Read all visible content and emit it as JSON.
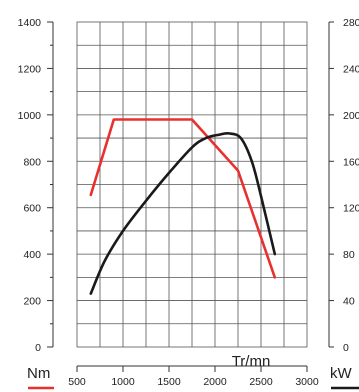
{
  "chart_data": {
    "type": "line",
    "xlabel": "Tr/mn",
    "x_ticks": [
      500,
      1000,
      1500,
      2000,
      2500,
      3000
    ],
    "xlim": [
      500,
      3000
    ],
    "y_left": {
      "unit": "Nm",
      "ticks": [
        0,
        200,
        400,
        600,
        800,
        1000,
        1200,
        1400
      ],
      "ylim": [
        0,
        1400
      ]
    },
    "y_right": {
      "unit": "kW",
      "ticks": [
        0,
        40,
        80,
        120,
        160,
        200,
        240,
        280
      ],
      "ylim": [
        0,
        280
      ]
    },
    "grid": true,
    "series": [
      {
        "color": "#e8312f",
        "axis": "left",
        "x": [
          650,
          900,
          1750,
          2250,
          2650
        ],
        "y": [
          655,
          980,
          980,
          760,
          300
        ]
      },
      {
        "color": "#1a1a1a",
        "axis": "right",
        "x": [
          650,
          800,
          1000,
          1250,
          1500,
          1750,
          1900,
          2050,
          2150,
          2280,
          2400,
          2500,
          2650
        ],
        "y": [
          46,
          74,
          100,
          126,
          150,
          172,
          180,
          183,
          184,
          180,
          160,
          130,
          80
        ]
      }
    ],
    "colors": {
      "nm_underline": "#e8312f",
      "kw_underline": "#1a1a1a"
    }
  }
}
